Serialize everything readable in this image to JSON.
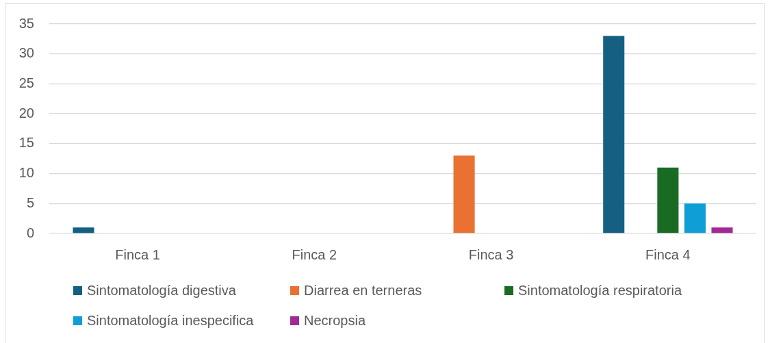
{
  "chart_data": {
    "type": "bar",
    "categories": [
      "Finca 1",
      "Finca 2",
      "Finca 3",
      "Finca 4"
    ],
    "series": [
      {
        "name": "Sintomatología digestiva",
        "color": "#156082",
        "values": [
          1,
          0,
          0,
          33
        ]
      },
      {
        "name": "Diarrea en terneras",
        "color": "#e97132",
        "values": [
          0,
          0,
          13,
          0
        ]
      },
      {
        "name": "Sintomatología respiratoria",
        "color": "#196b24",
        "values": [
          0,
          0,
          0,
          11
        ]
      },
      {
        "name": "Sintomatología inespecifica",
        "color": "#0f9ed5",
        "values": [
          0,
          0,
          0,
          5
        ]
      },
      {
        "name": "Necropsia",
        "color": "#a02b93",
        "values": [
          0,
          0,
          0,
          1
        ]
      }
    ],
    "ylim": [
      0,
      35
    ],
    "yticks": [
      0,
      5,
      10,
      15,
      20,
      25,
      30,
      35
    ],
    "grid": "y",
    "legend": "bottom"
  }
}
